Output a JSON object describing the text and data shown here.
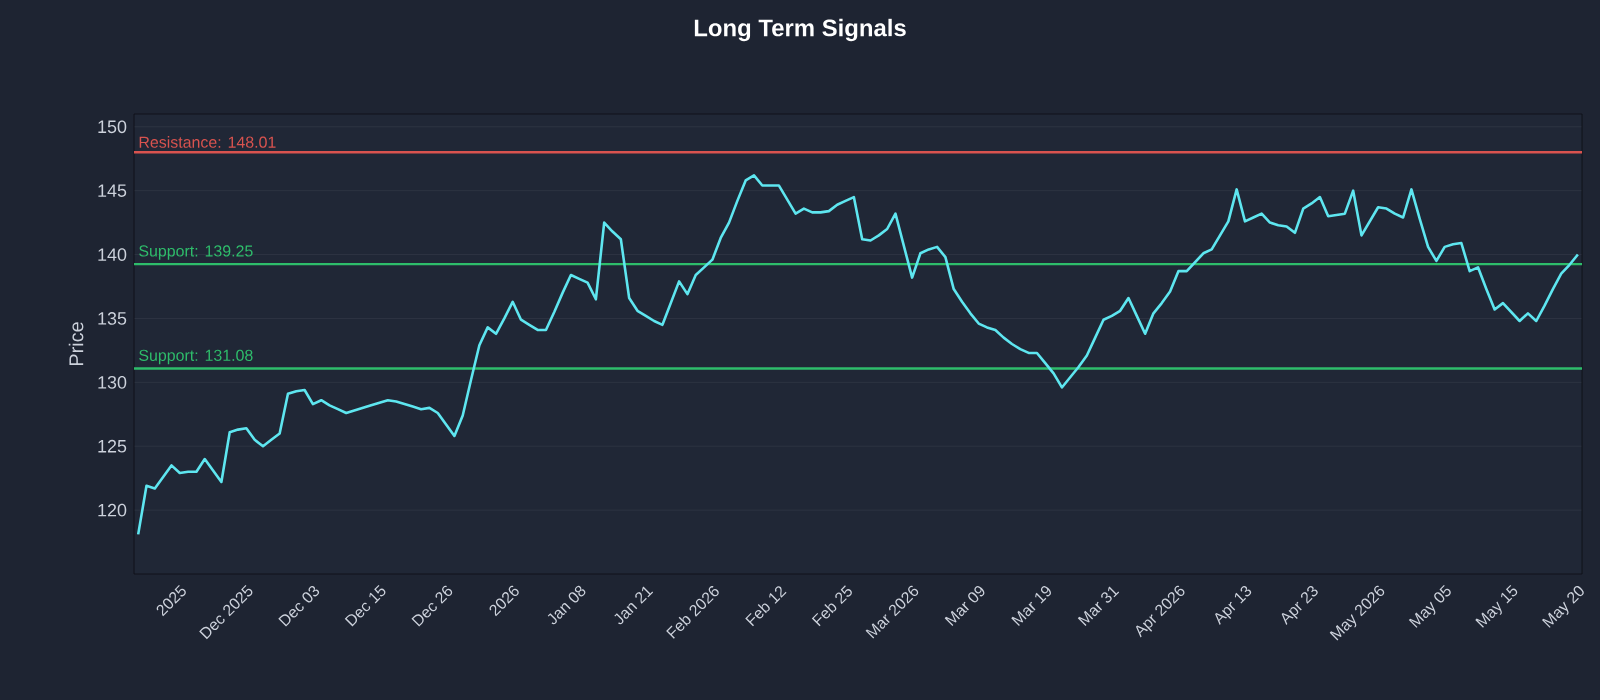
{
  "chart_data": {
    "type": "line",
    "title": "Long Term Signals",
    "ylabel": "Price",
    "categories": [
      null,
      null,
      null,
      null,
      null,
      "2025",
      null,
      null,
      null,
      null,
      null,
      null,
      null,
      "Dec 2025",
      null,
      null,
      null,
      null,
      null,
      null,
      null,
      "Dec 03",
      null,
      null,
      null,
      null,
      null,
      null,
      null,
      "Dec 15",
      null,
      null,
      null,
      null,
      null,
      null,
      null,
      "Dec 26",
      null,
      null,
      null,
      null,
      null,
      null,
      null,
      "2026",
      null,
      null,
      null,
      null,
      null,
      null,
      null,
      "Jan 08",
      null,
      null,
      null,
      null,
      null,
      null,
      null,
      "Jan 21",
      null,
      null,
      null,
      null,
      null,
      null,
      null,
      "Feb 2026",
      null,
      null,
      null,
      null,
      null,
      null,
      null,
      "Feb 12",
      null,
      null,
      null,
      null,
      null,
      null,
      null,
      "Feb 25",
      null,
      null,
      null,
      null,
      null,
      null,
      null,
      "Mar 2026",
      null,
      null,
      null,
      null,
      null,
      null,
      null,
      "Mar 09",
      null,
      null,
      null,
      null,
      null,
      null,
      null,
      "Mar 19",
      null,
      null,
      null,
      null,
      null,
      null,
      null,
      "Mar 31",
      null,
      null,
      null,
      null,
      null,
      null,
      null,
      "Apr 2026",
      null,
      null,
      null,
      null,
      null,
      null,
      null,
      "Apr 13",
      null,
      null,
      null,
      null,
      null,
      null,
      null,
      "Apr 23",
      null,
      null,
      null,
      null,
      null,
      null,
      null,
      "May 2026",
      null,
      null,
      null,
      null,
      null,
      null,
      null,
      "May 05",
      null,
      null,
      null,
      null,
      null,
      null,
      null,
      "May 15",
      null,
      null,
      null,
      null,
      null,
      null,
      null,
      "May 20"
    ],
    "series": [
      {
        "color": "#5ee6f0",
        "values": [
          118.1,
          121.9,
          121.7,
          122.6,
          123.5,
          122.9,
          123.0,
          123.0,
          124.0,
          123.1,
          122.2,
          126.1,
          126.3,
          126.4,
          125.5,
          125.0,
          125.5,
          126.0,
          129.1,
          129.3,
          129.4,
          128.3,
          128.6,
          128.2,
          127.9,
          127.6,
          127.8,
          128.0,
          128.2,
          128.4,
          128.6,
          128.5,
          128.3,
          128.1,
          127.9,
          128.0,
          127.6,
          126.7,
          125.8,
          127.4,
          130.2,
          132.9,
          134.3,
          133.8,
          135.0,
          136.3,
          134.9,
          134.5,
          134.1,
          134.1,
          135.5,
          137.0,
          138.4,
          138.1,
          137.8,
          136.5,
          142.5,
          141.8,
          141.2,
          136.6,
          135.6,
          135.2,
          134.8,
          134.5,
          136.2,
          137.9,
          136.9,
          138.4,
          139.0,
          139.6,
          141.3,
          142.5,
          144.2,
          145.8,
          146.2,
          145.4,
          145.4,
          145.4,
          144.3,
          143.2,
          143.6,
          143.3,
          143.3,
          143.4,
          143.9,
          144.2,
          144.5,
          141.2,
          141.1,
          141.5,
          142.0,
          143.2,
          140.7,
          138.2,
          140.1,
          140.4,
          140.6,
          139.8,
          137.3,
          136.3,
          135.4,
          134.6,
          134.3,
          134.1,
          133.5,
          133.0,
          132.6,
          132.3,
          132.3,
          131.5,
          130.7,
          129.6,
          130.4,
          131.2,
          132.1,
          133.5,
          134.9,
          135.2,
          135.6,
          136.6,
          135.2,
          133.8,
          135.4,
          136.2,
          137.1,
          138.7,
          138.7,
          139.4,
          140.1,
          140.4,
          141.5,
          142.6,
          145.1,
          142.6,
          142.9,
          143.2,
          142.5,
          142.3,
          142.2,
          141.7,
          143.6,
          144.0,
          144.5,
          143.0,
          143.1,
          143.2,
          145.0,
          141.5,
          142.6,
          143.7,
          143.6,
          143.2,
          142.9,
          145.1,
          142.8,
          140.6,
          139.5,
          140.6,
          140.8,
          140.9,
          138.7,
          139.0,
          137.3,
          135.7,
          136.2,
          135.5,
          134.8,
          135.4,
          134.8,
          136.0,
          137.3,
          138.5,
          139.2,
          140.0
        ]
      }
    ],
    "ylim": [
      115,
      151
    ],
    "yticks": [
      120,
      125,
      130,
      135,
      140,
      145,
      150
    ],
    "grid": "y",
    "ref_lines": [
      {
        "axis": "y",
        "value": 148.01,
        "label": "Resistance: 148.01",
        "color": "#d9534f"
      },
      {
        "axis": "y",
        "value": 139.25,
        "label": "Support: 139.25",
        "color": "#2ebd6b"
      },
      {
        "axis": "y",
        "value": 131.08,
        "label": "Support: 131.08",
        "color": "#2ebd6b"
      }
    ]
  }
}
